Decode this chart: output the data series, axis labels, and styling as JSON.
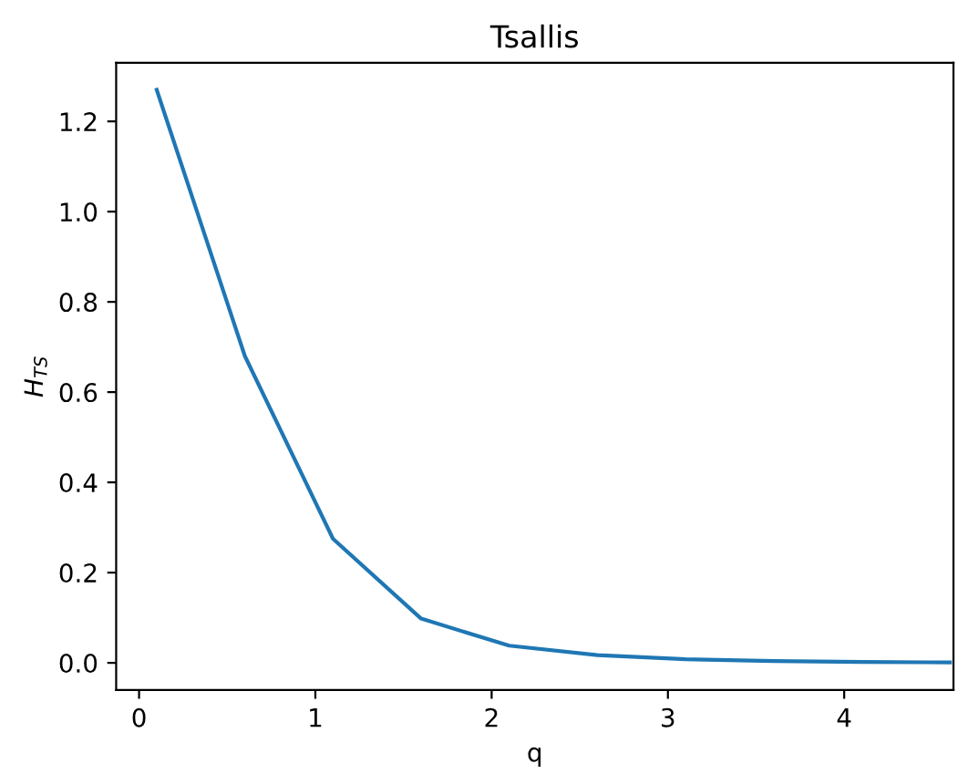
{
  "chart_data": {
    "type": "line",
    "title": "Tsallis",
    "xlabel": "q",
    "ylabel": "H$_{TS}$",
    "x": [
      0.1,
      0.6,
      1.1,
      1.6,
      2.1,
      2.6,
      3.1,
      3.6,
      4.1,
      4.6
    ],
    "series": [
      {
        "color": "#1f77b4",
        "values": [
          1.27,
          0.68,
          0.275,
          0.098,
          0.038,
          0.017,
          0.008,
          0.004,
          0.002,
          0.001
        ]
      }
    ],
    "xlim": [
      -0.13,
      4.62
    ],
    "xticks": [
      0,
      1,
      2,
      3,
      4
    ],
    "ylim": [
      -0.06,
      1.33
    ],
    "yticks": [
      {
        "value": 0,
        "label": "0.0"
      },
      {
        "value": 0.2,
        "label": "0.2"
      },
      {
        "value": 0.4,
        "label": "0.4"
      },
      {
        "value": 0.6,
        "label": "0.6"
      },
      {
        "value": 0.8,
        "label": "0.8"
      },
      {
        "value": 1.0,
        "label": "1.0"
      },
      {
        "value": 1.2,
        "label": "1.2"
      }
    ],
    "grid": false
  }
}
